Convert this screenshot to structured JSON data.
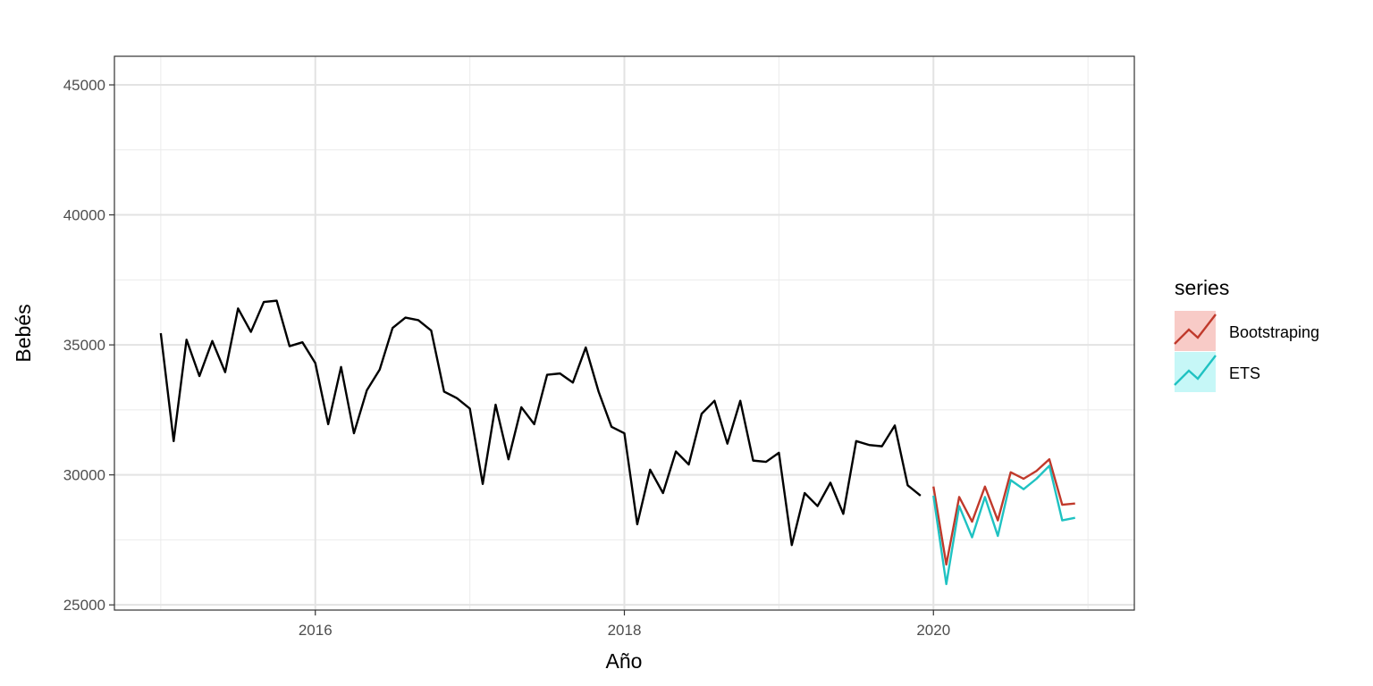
{
  "chart_data": {
    "type": "line",
    "xlabel": "Año",
    "ylabel": "Bebés",
    "xlim": [
      2014.7,
      2021.3
    ],
    "ylim": [
      24800,
      46100
    ],
    "x_ticks": [
      2016,
      2018,
      2020
    ],
    "x_tick_labels": [
      "2016",
      "2018",
      "2020"
    ],
    "y_ticks": [
      25000,
      30000,
      35000,
      40000,
      45000
    ],
    "y_tick_labels": [
      "25000",
      "30000",
      "35000",
      "40000",
      "45000"
    ],
    "grid": true,
    "legend": {
      "title": "series",
      "position": "right",
      "entries": [
        {
          "label": "Bootstraping",
          "color": "#c0392b",
          "fill": "#f8cbc7"
        },
        {
          "label": "ETS",
          "color": "#1fc2c2",
          "fill": "#c6f7f7"
        }
      ]
    },
    "series": [
      {
        "color": "#000000",
        "x_start": 2015,
        "step": 0.083333,
        "values": [
          35450,
          31300,
          35200,
          33800,
          35150,
          33950,
          36400,
          35500,
          36650,
          36700,
          34950,
          35100,
          34300,
          31950,
          34150,
          31600,
          33250,
          34050,
          35650,
          36050,
          35950,
          35550,
          33200,
          32950,
          32550,
          29650,
          32700,
          30600,
          32600,
          31950,
          33850,
          33900,
          33550,
          34900,
          33200,
          31850,
          31600,
          28100,
          30200,
          29300,
          30900,
          30400,
          32350,
          32850,
          31200,
          32850,
          30550,
          30500,
          30850,
          27300,
          29300,
          28800,
          29700,
          28500,
          31300,
          31150,
          31100,
          31900,
          29600,
          29200
        ]
      },
      {
        "name": "Bootstraping",
        "color": "#c0392b",
        "x_start": 2020,
        "step": 0.083333,
        "values": [
          29550,
          26550,
          29150,
          28200,
          29550,
          28250,
          30100,
          29850,
          30150,
          30600,
          28850,
          28900
        ]
      },
      {
        "name": "ETS",
        "color": "#1fc2c2",
        "x_start": 2020,
        "step": 0.083333,
        "values": [
          29200,
          25800,
          28800,
          27600,
          29150,
          27650,
          29800,
          29450,
          29850,
          30350,
          28250,
          28350
        ]
      }
    ]
  }
}
